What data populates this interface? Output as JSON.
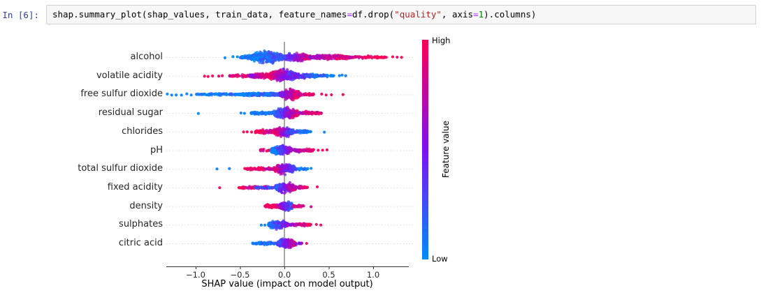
{
  "cell": {
    "prompt": "In [6]:",
    "prompt_color": "#303F9F",
    "code_tokens": [
      {
        "text": "shap.summary_plot(shap_values, train_data, feature_names",
        "color": "default"
      },
      {
        "text": "=",
        "color": "operator"
      },
      {
        "text": "df.drop(",
        "color": "default"
      },
      {
        "text": "\"quality\"",
        "color": "string"
      },
      {
        "text": ", axis",
        "color": "default"
      },
      {
        "text": "=",
        "color": "operator"
      },
      {
        "text": "1",
        "color": "number"
      },
      {
        "text": ").columns)",
        "color": "default"
      }
    ],
    "syntax_colors": {
      "default": "#000000",
      "operator": "#AA22FF",
      "string": "#BA2121",
      "number": "#008000"
    }
  },
  "chart_data": {
    "type": "scatter",
    "subtype": "shap-beeswarm-summary",
    "xlabel": "SHAP value (impact on model output)",
    "x_ticks": [
      {
        "value": -1.0,
        "label": "−1.0"
      },
      {
        "value": -0.5,
        "label": "−0.5"
      },
      {
        "value": 0.0,
        "label": "0.0"
      },
      {
        "value": 0.5,
        "label": "0.5"
      },
      {
        "value": 1.0,
        "label": "1.0"
      }
    ],
    "x_range_visible": [
      -1.35,
      1.4
    ],
    "grid": "dotted-horizontal",
    "zero_line_color": "#8c8c8c",
    "colorbar": {
      "label": "Feature value",
      "high": "High",
      "low": "Low",
      "top_color": "#ff0051",
      "mid_color": "#7d10f4",
      "bottom_color": "#008bfb"
    },
    "encoding_note": "segments: [shap_x0, shap_x1, n_points, half_thickness_px, color_t0, color_t1] where color_t 0=low/blue, 1=high/red; outliers: [shap_x, color_t]",
    "features": [
      {
        "name": "alcohol",
        "segments": [
          [
            -0.5,
            -0.3,
            70,
            3.5,
            0.0,
            0.15
          ],
          [
            -0.38,
            -0.02,
            380,
            11,
            0.0,
            0.25
          ],
          [
            -0.05,
            0.3,
            250,
            7.5,
            0.2,
            0.95
          ],
          [
            0.28,
            0.75,
            200,
            5,
            0.55,
            1.0
          ],
          [
            0.72,
            1.15,
            70,
            2.5,
            0.8,
            1.0
          ]
        ],
        "outliers": [
          [
            -0.67,
            0.02
          ],
          [
            -0.58,
            0.02
          ],
          [
            -0.53,
            0.02
          ],
          [
            -0.47,
            0.02
          ],
          [
            1.22,
            0.98
          ],
          [
            1.27,
            0.95
          ],
          [
            1.32,
            0.98
          ]
        ]
      },
      {
        "name": "volatile acidity",
        "segments": [
          [
            -0.62,
            -0.35,
            55,
            2.5,
            0.85,
            1.0
          ],
          [
            -0.4,
            -0.12,
            130,
            5,
            0.6,
            1.0
          ],
          [
            -0.18,
            0.14,
            340,
            11,
            0.95,
            0.25
          ],
          [
            0.1,
            0.38,
            130,
            5,
            0.5,
            0.05
          ],
          [
            0.36,
            0.56,
            45,
            2,
            0.15,
            0.0
          ]
        ],
        "outliers": [
          [
            -0.9,
            0.98
          ],
          [
            -0.86,
            0.95
          ],
          [
            -0.81,
            0.98
          ],
          [
            -0.74,
            0.9
          ],
          [
            -0.7,
            0.95
          ],
          [
            0.62,
            0.05
          ],
          [
            0.65,
            0.02
          ],
          [
            0.69,
            0.05
          ]
        ]
      },
      {
        "name": "free sulfur dioxide",
        "segments": [
          [
            -1.0,
            -0.5,
            90,
            2,
            0.0,
            0.1
          ],
          [
            -0.52,
            -0.04,
            230,
            3.5,
            0.0,
            0.2
          ],
          [
            -0.05,
            0.18,
            280,
            10,
            0.45,
            1.0
          ],
          [
            0.16,
            0.33,
            40,
            2.5,
            0.75,
            1.0
          ]
        ],
        "outliers": [
          [
            -1.32,
            0.02
          ],
          [
            -1.27,
            0.05
          ],
          [
            -1.22,
            0.02
          ],
          [
            -1.16,
            0.02
          ],
          [
            -1.1,
            0.05
          ],
          [
            -1.05,
            0.02
          ],
          [
            0.42,
            0.95
          ],
          [
            0.47,
            0.98
          ],
          [
            0.53,
            0.9
          ],
          [
            0.66,
            0.98
          ]
        ]
      },
      {
        "name": "residual sugar",
        "segments": [
          [
            -0.38,
            -0.1,
            90,
            3,
            0.0,
            0.2
          ],
          [
            -0.12,
            0.16,
            300,
            10,
            0.15,
            0.95
          ],
          [
            0.14,
            0.42,
            90,
            3,
            0.7,
            0.95
          ]
        ],
        "outliers": [
          [
            -0.97,
            0.02
          ],
          [
            -0.49,
            0.05
          ],
          [
            -0.45,
            0.02
          ]
        ]
      },
      {
        "name": "chlorides",
        "segments": [
          [
            -0.33,
            -0.1,
            90,
            4,
            1.0,
            0.7
          ],
          [
            -0.12,
            0.1,
            270,
            9,
            0.95,
            0.15
          ],
          [
            0.08,
            0.3,
            70,
            3,
            0.3,
            0.0
          ]
        ],
        "outliers": [
          [
            -0.46,
            0.98
          ],
          [
            -0.42,
            0.95
          ],
          [
            -0.37,
            0.98
          ],
          [
            0.45,
            0.02
          ]
        ]
      },
      {
        "name": "pH",
        "segments": [
          [
            -0.3,
            -0.15,
            18,
            2,
            0.85,
            1.0
          ],
          [
            -0.15,
            0.08,
            260,
            9,
            0.0,
            0.65
          ],
          [
            0.06,
            0.33,
            90,
            3,
            0.55,
            1.0
          ]
        ],
        "outliers": [
          [
            0.38,
            0.95
          ],
          [
            0.43,
            0.98
          ],
          [
            0.48,
            0.95
          ]
        ]
      },
      {
        "name": "total sulfur dioxide",
        "segments": [
          [
            -0.45,
            -0.1,
            80,
            2.5,
            1.0,
            0.75
          ],
          [
            -0.12,
            0.12,
            240,
            9,
            0.9,
            0.2
          ],
          [
            0.1,
            0.27,
            30,
            2.5,
            0.2,
            0.0
          ]
        ],
        "outliers": [
          [
            -0.76,
            0.02
          ],
          [
            -0.62,
            0.05
          ],
          [
            0.3,
            0.02
          ]
        ]
      },
      {
        "name": "fixed acidity",
        "segments": [
          [
            -0.52,
            -0.08,
            100,
            2.5,
            0.95,
            0.6
          ],
          [
            -0.35,
            -0.1,
            25,
            2,
            0.1,
            0.3
          ],
          [
            -0.1,
            0.13,
            240,
            9,
            0.15,
            0.9
          ],
          [
            0.12,
            0.26,
            35,
            2.5,
            0.65,
            0.9
          ]
        ],
        "outliers": [
          [
            -0.73,
            0.98
          ],
          [
            0.37,
            0.95
          ]
        ]
      },
      {
        "name": "density",
        "segments": [
          [
            -0.22,
            -0.03,
            90,
            4.5,
            1.0,
            0.7
          ],
          [
            -0.06,
            0.1,
            200,
            8,
            0.7,
            0.1
          ],
          [
            0.09,
            0.22,
            35,
            2.5,
            0.7,
            0.9
          ]
        ],
        "outliers": [
          [
            0.3,
            0.85
          ]
        ]
      },
      {
        "name": "sulphates",
        "segments": [
          [
            -0.18,
            0.04,
            220,
            8,
            0.0,
            0.6
          ],
          [
            0.03,
            0.3,
            90,
            3,
            0.6,
            1.0
          ]
        ],
        "outliers": [
          [
            -0.26,
            0.05
          ],
          [
            -0.22,
            0.02
          ],
          [
            0.36,
            0.9
          ],
          [
            0.41,
            0.95
          ]
        ]
      },
      {
        "name": "citric acid",
        "segments": [
          [
            -0.36,
            -0.06,
            90,
            2.5,
            0.0,
            0.2
          ],
          [
            -0.08,
            0.13,
            220,
            9,
            0.2,
            0.95
          ],
          [
            0.12,
            0.2,
            15,
            2,
            0.4,
            0.7
          ]
        ],
        "outliers": [
          [
            0.25,
            0.95
          ]
        ]
      }
    ]
  }
}
